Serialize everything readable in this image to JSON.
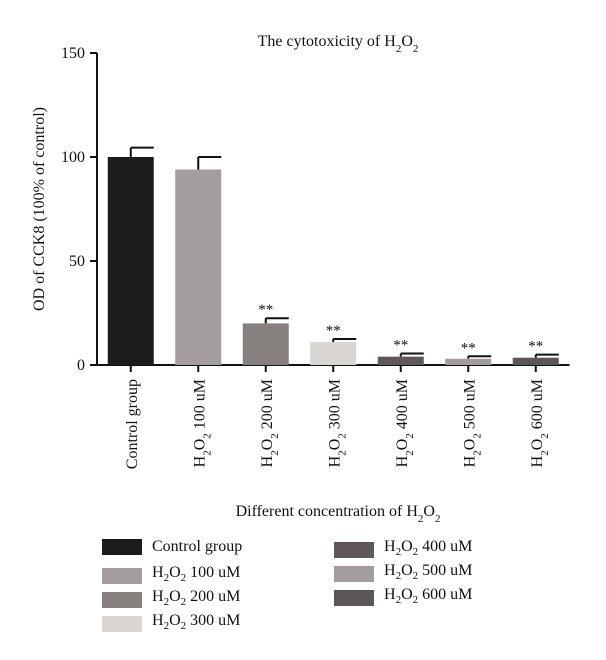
{
  "chart_data": {
    "type": "bar",
    "title": "The cytotoxicity of H2O2",
    "xlabel": "Different concentration of H2O2",
    "ylabel": "OD of CCK8 (100% of control)",
    "ylim": [
      0,
      150
    ],
    "yticks": [
      "0",
      "50",
      "100",
      "150"
    ],
    "categories": [
      "Control group",
      "H2O2 100 uM",
      "H2O2 200 uM",
      "H2O2 300 uM",
      "H2O2 400 uM",
      "H2O2 500 uM",
      "H2O2 600 uM"
    ],
    "values": [
      100,
      94,
      20,
      11,
      4,
      3,
      3.5
    ],
    "errors": [
      4.5,
      6,
      2.5,
      1.5,
      1.5,
      1.2,
      1.5
    ],
    "significance": [
      "",
      "",
      "**",
      "**",
      "**",
      "**",
      "**"
    ],
    "colors": [
      "#1c1d1b",
      "#a39d9d",
      "#86807f",
      "#d9d5d3",
      "#5e5958",
      "#a29c9c",
      "#5b5756"
    ],
    "grid": false,
    "legend_placement": "bottom"
  },
  "legend": {
    "items": [
      {
        "label": "Control group",
        "color": "#1c1d1b"
      },
      {
        "label": "H2O2 100 uM",
        "color": "#a39d9d"
      },
      {
        "label": "H2O2 200 uM",
        "color": "#86807f"
      },
      {
        "label": "H2O2 300 uM",
        "color": "#d9d5d3"
      },
      {
        "label": "H2O2 400 uM",
        "color": "#5e5958"
      },
      {
        "label": "H2O2 500 uM",
        "color": "#a29c9c"
      },
      {
        "label": "H2O2 600 uM",
        "color": "#5b5756"
      }
    ]
  }
}
